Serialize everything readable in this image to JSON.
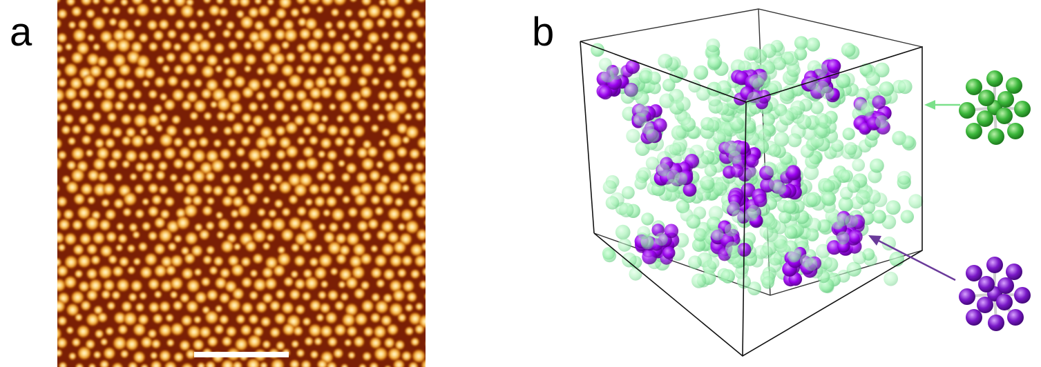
{
  "figure": {
    "panel_a": {
      "label": "a"
    },
    "panel_b": {
      "label": "b"
    }
  },
  "colors": {
    "afm_background": "#7a1f05",
    "afm_bright": "#fff2b0",
    "afm_mid": "#f0a020",
    "scale_bar": "#ffffff",
    "matrix_sphere": "#9ff0b0",
    "cluster_sphere": "#9b00f0",
    "green_arrow": "#7be08a",
    "purple_arrow": "#6a3a9a",
    "green_cluster": "#3cb83c",
    "purple_cluster": "#7a18c8",
    "box_edges": "#111111"
  },
  "icons": {
    "green_cluster": "green-icosahedral-cluster-icon",
    "purple_cluster": "purple-icosahedral-cluster-icon"
  }
}
